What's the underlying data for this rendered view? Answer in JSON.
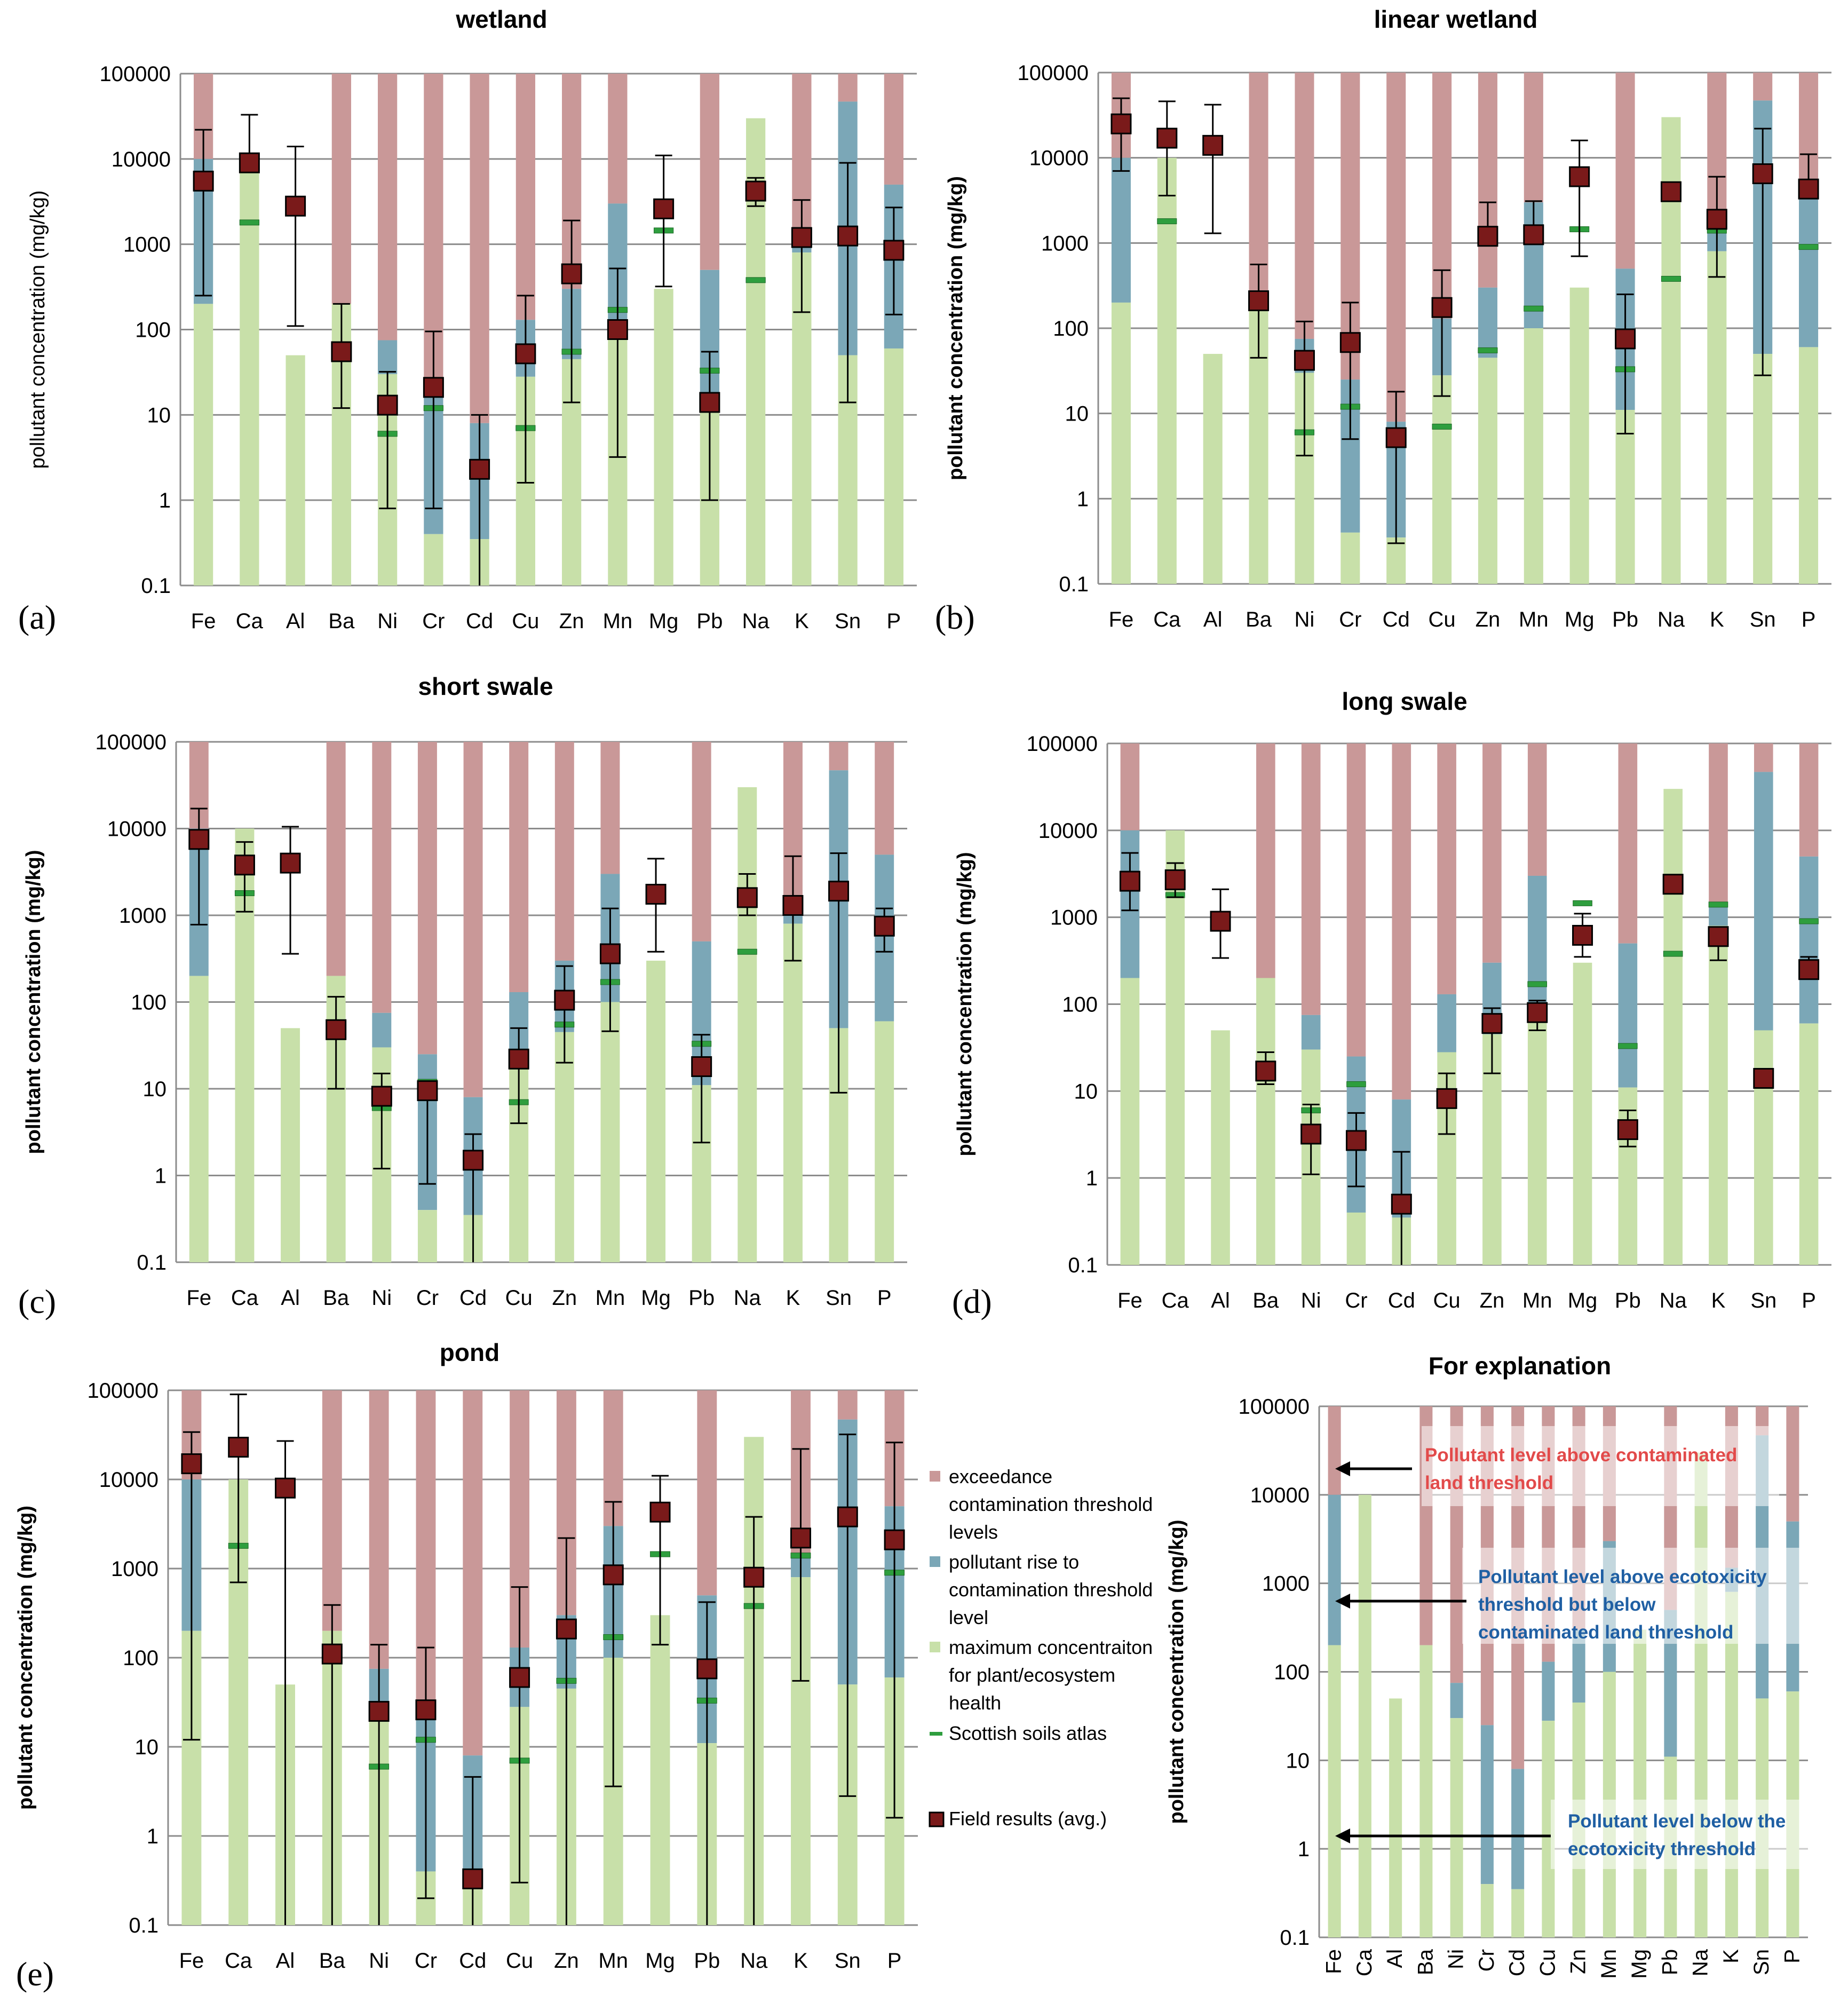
{
  "figure": {
    "y_axis_label": "pollutant concentration (mg/kg)",
    "y_ticks": [
      "0.1",
      "1",
      "10",
      "100",
      "1000",
      "10000",
      "100000"
    ],
    "colors": {
      "exceedance": "#c99898",
      "rise": "#7ba7b7",
      "max_conc": "#c8e0a9",
      "atlas": "#2e9e3e",
      "field": "#7a1a1a",
      "grid": "#8c8c8c"
    }
  },
  "legend": {
    "items": [
      {
        "label": "exceedance contamination threshold levels",
        "lines": [
          "exceedance",
          "contamination threshold",
          "levels"
        ],
        "color": "#c99898"
      },
      {
        "label": "pollutant rise to contamination threshold level",
        "lines": [
          "pollutant rise to",
          "contamination threshold",
          "level"
        ],
        "color": "#7ba7b7"
      },
      {
        "label": "maximum concentraiton for plant/ecosystem health",
        "lines": [
          "maximum concentraiton",
          "for plant/ecosystem",
          "health"
        ],
        "color": "#c8e0a9"
      },
      {
        "label": "Scottish soils atlas",
        "lines": [
          "Scottish soils atlas"
        ],
        "color": "#2e9e3e"
      },
      {
        "label": "Field results (avg.)",
        "lines": [
          "Field results (avg.)"
        ],
        "color": "#7a1a1a"
      }
    ]
  },
  "explanation_notes": {
    "above_contaminated": [
      "Pollutant level above contaminated",
      "land threshold"
    ],
    "between": [
      "Pollutant level above ecotoxicity",
      "threshold but below",
      "contaminated land threshold"
    ],
    "below": [
      "Pollutant level below the",
      "ecotoxicity threshold"
    ]
  },
  "chart_data": [
    {
      "id": "a",
      "title": "wetland",
      "panel_label": "(a)",
      "type": "bar",
      "yscale": "log",
      "ylim": [
        0.1,
        100000
      ],
      "ylabel_bold": false,
      "categories": [
        "Fe",
        "Ca",
        "Al",
        "Ba",
        "Ni",
        "Cr",
        "Cd",
        "Cu",
        "Zn",
        "Mn",
        "Mg",
        "Pb",
        "Na",
        "K",
        "Sn",
        "P"
      ],
      "series": [
        {
          "name": "maximum concentraiton for plant/ecosystem health",
          "values": [
            200,
            10000,
            50,
            200,
            30,
            0.4,
            0.35,
            28,
            45,
            100,
            300,
            11,
            30000,
            800,
            50,
            60
          ]
        },
        {
          "name": "pollutant rise to contamination threshold level",
          "values": [
            10000,
            10000,
            50,
            200,
            75,
            25,
            8,
            130,
            300,
            3000,
            300,
            500,
            30000,
            1500,
            47000,
            5000
          ]
        },
        {
          "name": "exceedance contamination threshold levels",
          "values": [
            100000,
            10000,
            50,
            100000,
            100000,
            100000,
            100000,
            100000,
            100000,
            100000,
            300,
            100000,
            30000,
            100000,
            100000,
            100000
          ]
        },
        {
          "name": "Scottish soils atlas",
          "values": [
            null,
            1800,
            null,
            null,
            6,
            12,
            null,
            7,
            55,
            170,
            1450,
            33,
            380,
            1400,
            null,
            900
          ]
        },
        {
          "name": "Field results (avg.)",
          "values": [
            5500,
            9000,
            2800,
            55,
            13,
            21,
            2.3,
            52,
            450,
            100,
            2600,
            14,
            4200,
            1200,
            1250,
            850
          ],
          "err_low": [
            250,
            null,
            110,
            12,
            0.8,
            0.8,
            0.1,
            1.6,
            14,
            3.2,
            320,
            1,
            2800,
            160,
            14,
            150
          ],
          "err_high": [
            22000,
            33000,
            14000,
            200,
            32,
            95,
            10,
            250,
            1900,
            520,
            11000,
            55,
            6000,
            3300,
            9000,
            2700
          ]
        }
      ]
    },
    {
      "id": "b",
      "title": "linear wetland",
      "panel_label": "(b)",
      "type": "bar",
      "yscale": "log",
      "ylim": [
        0.1,
        100000
      ],
      "ylabel_bold": true,
      "categories": [
        "Fe",
        "Ca",
        "Al",
        "Ba",
        "Ni",
        "Cr",
        "Cd",
        "Cu",
        "Zn",
        "Mn",
        "Mg",
        "Pb",
        "Na",
        "K",
        "Sn",
        "P"
      ],
      "series": [
        {
          "name": "maximum concentraiton for plant/ecosystem health",
          "values": [
            200,
            10000,
            50,
            200,
            30,
            0.4,
            0.35,
            28,
            45,
            100,
            300,
            11,
            30000,
            800,
            50,
            60
          ]
        },
        {
          "name": "pollutant rise to contamination threshold level",
          "values": [
            10000,
            10000,
            50,
            200,
            75,
            25,
            8,
            130,
            300,
            3000,
            300,
            500,
            30000,
            1500,
            47000,
            5000
          ]
        },
        {
          "name": "exceedance contamination threshold levels",
          "values": [
            100000,
            10000,
            50,
            100000,
            100000,
            100000,
            100000,
            100000,
            100000,
            100000,
            300,
            100000,
            30000,
            100000,
            100000,
            100000
          ]
        },
        {
          "name": "Scottish soils atlas",
          "values": [
            null,
            1800,
            null,
            null,
            6,
            12,
            null,
            7,
            55,
            170,
            1450,
            33,
            380,
            1400,
            null,
            900
          ]
        },
        {
          "name": "Field results (avg.)",
          "values": [
            25000,
            17000,
            14000,
            210,
            42,
            68,
            5.2,
            175,
            1200,
            1250,
            6000,
            75,
            4000,
            1900,
            6500,
            4300
          ],
          "err_low": [
            7000,
            3600,
            1300,
            45,
            3.2,
            5,
            0.3,
            16,
            null,
            null,
            700,
            5.8,
            null,
            400,
            28,
            null
          ],
          "err_high": [
            50000,
            46000,
            42000,
            560,
            120,
            200,
            18,
            480,
            3000,
            3100,
            16000,
            250,
            null,
            6000,
            22000,
            11000
          ]
        }
      ]
    },
    {
      "id": "c",
      "title": "short swale",
      "panel_label": "(c)",
      "type": "bar",
      "yscale": "log",
      "ylim": [
        0.1,
        100000
      ],
      "ylabel_bold": true,
      "categories": [
        "Fe",
        "Ca",
        "Al",
        "Ba",
        "Ni",
        "Cr",
        "Cd",
        "Cu",
        "Zn",
        "Mn",
        "Mg",
        "Pb",
        "Na",
        "K",
        "Sn",
        "P"
      ],
      "series": [
        {
          "name": "maximum concentraiton for plant/ecosystem health",
          "values": [
            200,
            10000,
            50,
            200,
            30,
            0.4,
            0.35,
            28,
            45,
            100,
            300,
            11,
            30000,
            800,
            50,
            60
          ]
        },
        {
          "name": "pollutant rise to contamination threshold level",
          "values": [
            10000,
            10000,
            50,
            200,
            75,
            25,
            8,
            130,
            300,
            3000,
            300,
            500,
            30000,
            1500,
            47000,
            5000
          ]
        },
        {
          "name": "exceedance contamination threshold levels",
          "values": [
            100000,
            10000,
            50,
            100000,
            100000,
            100000,
            100000,
            100000,
            100000,
            100000,
            300,
            100000,
            30000,
            100000,
            100000,
            100000
          ]
        },
        {
          "name": "Scottish soils atlas",
          "values": [
            null,
            1800,
            null,
            null,
            6,
            12,
            null,
            7,
            55,
            170,
            1450,
            33,
            380,
            1400,
            null,
            900
          ]
        },
        {
          "name": "Field results (avg.)",
          "values": [
            7500,
            3800,
            4000,
            48,
            8.2,
            9.5,
            1.5,
            22,
            105,
            360,
            1750,
            18,
            1600,
            1300,
            1900,
            750
          ],
          "err_low": [
            780,
            1100,
            360,
            10,
            1.2,
            0.8,
            0.1,
            4,
            20,
            46,
            380,
            2.4,
            1000,
            300,
            9,
            380
          ],
          "err_high": [
            17000,
            7000,
            10500,
            115,
            15,
            12,
            3,
            50,
            260,
            1200,
            4500,
            42,
            3000,
            4800,
            5200,
            1200
          ]
        }
      ]
    },
    {
      "id": "d",
      "title": "long swale",
      "panel_label": "(d)",
      "type": "bar",
      "yscale": "log",
      "ylim": [
        0.1,
        100000
      ],
      "ylabel_bold": true,
      "categories": [
        "Fe",
        "Ca",
        "Al",
        "Ba",
        "Ni",
        "Cr",
        "Cd",
        "Cu",
        "Zn",
        "Mn",
        "Mg",
        "Pb",
        "Na",
        "K",
        "Sn",
        "P"
      ],
      "series": [
        {
          "name": "maximum concentraiton for plant/ecosystem health",
          "values": [
            200,
            10000,
            50,
            200,
            30,
            0.4,
            0.35,
            28,
            45,
            100,
            300,
            11,
            30000,
            800,
            50,
            60
          ]
        },
        {
          "name": "pollutant rise to contamination threshold level",
          "values": [
            10000,
            10000,
            50,
            200,
            75,
            25,
            8,
            130,
            300,
            3000,
            300,
            500,
            30000,
            1500,
            47000,
            5000
          ]
        },
        {
          "name": "exceedance contamination threshold levels",
          "values": [
            100000,
            10000,
            50,
            100000,
            100000,
            100000,
            100000,
            100000,
            100000,
            100000,
            300,
            100000,
            30000,
            100000,
            100000,
            100000
          ]
        },
        {
          "name": "Scottish soils atlas",
          "values": [
            null,
            1800,
            null,
            null,
            6,
            12,
            null,
            7,
            55,
            170,
            1450,
            33,
            380,
            1400,
            null,
            900
          ]
        },
        {
          "name": "Field results (avg.)",
          "values": [
            2600,
            2700,
            900,
            17,
            3.2,
            2.7,
            0.5,
            8.2,
            60,
            80,
            620,
            3.6,
            2400,
            600,
            14,
            250
          ],
          "err_low": [
            1200,
            1700,
            340,
            12,
            1.1,
            0.8,
            0.1,
            3.2,
            16,
            50,
            350,
            2.3,
            null,
            320,
            11,
            null
          ],
          "err_high": [
            5500,
            4200,
            2100,
            28,
            7,
            5.6,
            2,
            16,
            90,
            110,
            1100,
            6,
            null,
            null,
            18,
            350
          ]
        }
      ]
    },
    {
      "id": "e",
      "title": "pond",
      "panel_label": "(e)",
      "type": "bar",
      "yscale": "log",
      "ylim": [
        0.1,
        100000
      ],
      "ylabel_bold": true,
      "categories": [
        "Fe",
        "Ca",
        "Al",
        "Ba",
        "Ni",
        "Cr",
        "Cd",
        "Cu",
        "Zn",
        "Mn",
        "Mg",
        "Pb",
        "Na",
        "K",
        "Sn",
        "P"
      ],
      "series": [
        {
          "name": "maximum concentraiton for plant/ecosystem health",
          "values": [
            200,
            10000,
            50,
            200,
            30,
            0.4,
            0.35,
            28,
            45,
            100,
            300,
            11,
            30000,
            800,
            50,
            60
          ]
        },
        {
          "name": "pollutant rise to contamination threshold level",
          "values": [
            10000,
            10000,
            50,
            200,
            75,
            25,
            8,
            130,
            300,
            3000,
            300,
            500,
            30000,
            1500,
            47000,
            5000
          ]
        },
        {
          "name": "exceedance contamination threshold levels",
          "values": [
            100000,
            10000,
            50,
            100000,
            100000,
            100000,
            100000,
            100000,
            100000,
            100000,
            300,
            100000,
            30000,
            100000,
            100000,
            100000
          ]
        },
        {
          "name": "Scottish soils atlas",
          "values": [
            null,
            1800,
            null,
            null,
            6,
            12,
            null,
            7,
            55,
            170,
            1450,
            33,
            380,
            1400,
            null,
            900
          ]
        },
        {
          "name": "Field results (avg.)",
          "values": [
            15000,
            23000,
            8000,
            110,
            25,
            26,
            0.33,
            60,
            210,
            850,
            4300,
            75,
            800,
            2200,
            3800,
            2100
          ],
          "err_low": [
            12,
            700,
            0.1,
            0.1,
            0.1,
            0.2,
            0.1,
            0.3,
            0.1,
            3.6,
            140,
            0.1,
            0.1,
            55,
            2.8,
            1.6
          ],
          "err_high": [
            34000,
            90000,
            27000,
            390,
            140,
            130,
            4.6,
            620,
            2200,
            5600,
            11000,
            420,
            3800,
            22000,
            32000,
            26000
          ]
        }
      ]
    },
    {
      "id": "f",
      "title": "For explanation",
      "panel_label": "",
      "type": "bar",
      "yscale": "log",
      "ylim": [
        0.1,
        100000
      ],
      "ylabel_bold": true,
      "rotated_ticks": true,
      "categories": [
        "Fe",
        "Ca",
        "Al",
        "Ba",
        "Ni",
        "Cr",
        "Cd",
        "Cu",
        "Zn",
        "Mn",
        "Mg",
        "Pb",
        "Na",
        "K",
        "Sn",
        "P"
      ],
      "series": [
        {
          "name": "maximum concentraiton for plant/ecosystem health",
          "values": [
            200,
            10000,
            50,
            200,
            30,
            0.4,
            0.35,
            28,
            45,
            100,
            300,
            11,
            30000,
            800,
            50,
            60
          ]
        },
        {
          "name": "pollutant rise to contamination threshold level",
          "values": [
            10000,
            10000,
            50,
            200,
            75,
            25,
            8,
            130,
            300,
            3000,
            300,
            500,
            30000,
            1500,
            47000,
            5000
          ]
        },
        {
          "name": "exceedance contamination threshold levels",
          "values": [
            100000,
            10000,
            50,
            100000,
            100000,
            100000,
            100000,
            100000,
            100000,
            100000,
            300,
            100000,
            30000,
            100000,
            100000,
            100000
          ]
        }
      ]
    }
  ]
}
